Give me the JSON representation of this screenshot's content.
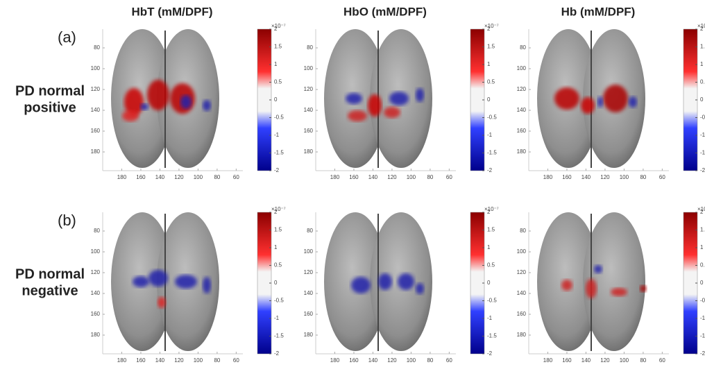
{
  "columns": [
    "HbT (mM/DPF)",
    "HbO (mM/DPF)",
    "Hb (mM/DPF)"
  ],
  "rows": [
    {
      "label": "(a)",
      "name": [
        "PD normal",
        "positive"
      ]
    },
    {
      "label": "(b)",
      "name": [
        "PD normal",
        "negative"
      ]
    }
  ],
  "axes": {
    "xlim": [
      200,
      53
    ],
    "ylim": [
      62,
      198
    ],
    "xticks": [
      180,
      160,
      140,
      120,
      100,
      80,
      60
    ],
    "yticks": [
      80,
      100,
      120,
      140,
      160,
      180
    ]
  },
  "colorbar": {
    "lim": [
      -2,
      2
    ],
    "ticks": [
      2,
      1.5,
      1,
      0.5,
      0,
      -0.5,
      -1,
      -1.5,
      -2
    ],
    "exponent": "×10⁻⁷"
  }
}
